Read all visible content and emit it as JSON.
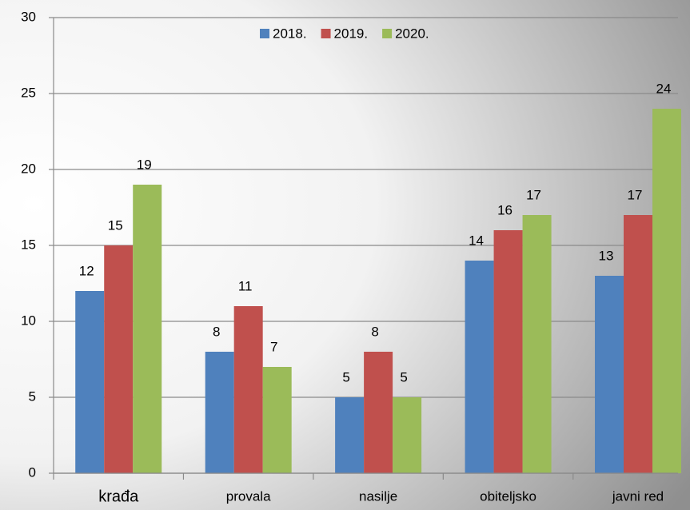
{
  "chart_data": {
    "type": "bar",
    "categories": [
      "krađa",
      "provala",
      "nasilje",
      "obiteljsko",
      "javni red"
    ],
    "series": [
      {
        "name": "2018.",
        "color": "#4f81bd",
        "values": [
          12,
          8,
          5,
          14,
          13
        ]
      },
      {
        "name": "2019.",
        "color": "#c0504d",
        "values": [
          15,
          11,
          8,
          16,
          17
        ]
      },
      {
        "name": "2020.",
        "color": "#9bbb59",
        "values": [
          19,
          7,
          5,
          17,
          24
        ]
      }
    ],
    "ylim": [
      0,
      30
    ],
    "yticks": [
      0,
      5,
      10,
      15,
      20,
      25,
      30
    ],
    "grid": true,
    "legend": "top"
  }
}
